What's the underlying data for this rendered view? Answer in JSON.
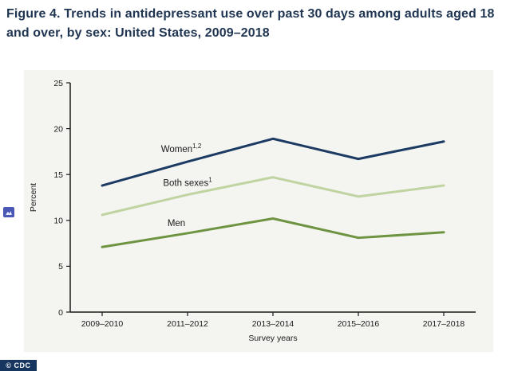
{
  "page": {
    "title": "Figure 4. Trends in antidepressant use over past 30 days among adults aged 18 and over, by sex: United States, 2009–2018",
    "cdc_badge": "© CDC"
  },
  "chart_data": {
    "type": "line",
    "title": "Figure 4. Trends in antidepressant use over past 30 days among adults aged 18 and over, by sex: United States, 2009–2018",
    "xlabel": "Survey years",
    "ylabel": "Percent",
    "ylim": [
      0,
      25
    ],
    "yticks": [
      0,
      5,
      10,
      15,
      20,
      25
    ],
    "grid": false,
    "legend_position": "inline-labels",
    "categories": [
      "2009–2010",
      "2011–2012",
      "2013–2014",
      "2015–2016",
      "2017–2018"
    ],
    "series": [
      {
        "name": "Women",
        "sup": "1,2",
        "color": "#1c3b63",
        "values": [
          13.8,
          16.4,
          18.9,
          16.7,
          18.6
        ],
        "label_pos": {
          "point": 1,
          "dx": -8,
          "dy": -12
        }
      },
      {
        "name": "Both sexes",
        "sup": "1",
        "color": "#c0d4a2",
        "values": [
          10.6,
          12.8,
          14.7,
          12.6,
          13.8
        ],
        "label_pos": {
          "point": 1,
          "dx": 0,
          "dy": -11
        }
      },
      {
        "name": "Men",
        "sup": "",
        "color": "#6e9441",
        "values": [
          7.1,
          8.6,
          10.2,
          8.1,
          8.7
        ],
        "label_pos": {
          "point": 1,
          "dx": -14,
          "dy": -9
        }
      }
    ]
  }
}
